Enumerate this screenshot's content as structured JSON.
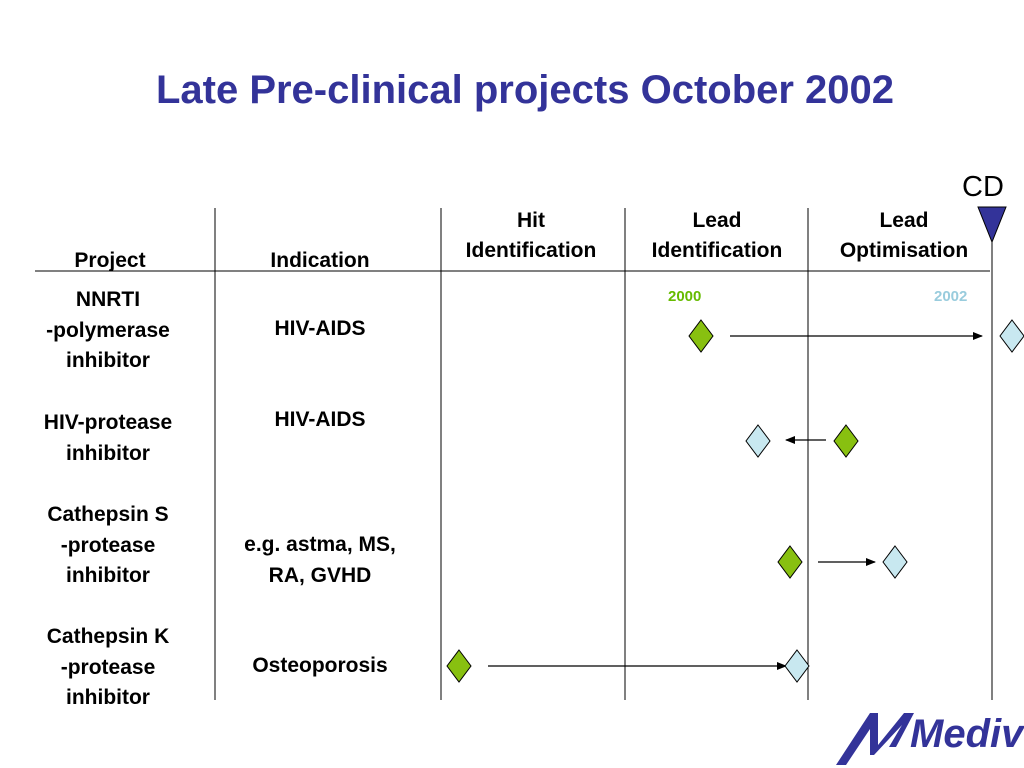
{
  "title": "Late Pre-clinical projects October 2002",
  "cd_marker": {
    "label": "CD",
    "color": "#333399"
  },
  "headers": {
    "project": "Project",
    "indication": "Indication",
    "hit_identification": [
      "Hit",
      "Identification"
    ],
    "lead_identification": [
      "Lead",
      "Identification"
    ],
    "lead_optimisation": [
      "Lead",
      "Optimisation"
    ]
  },
  "years": [
    {
      "label": "2000",
      "color": "#66bb00"
    },
    {
      "label": "2002",
      "color": "#99ccdd"
    }
  ],
  "legend_colors": {
    "start_diamond": "#88c010",
    "end_diamond": "#c8e8f0"
  },
  "projects": [
    {
      "name": [
        "NNRTI",
        "-polymerase",
        "inhibitor"
      ],
      "indication": [
        "HIV-AIDS"
      ]
    },
    {
      "name": [
        "HIV-protease",
        "inhibitor"
      ],
      "indication": [
        "HIV-AIDS"
      ]
    },
    {
      "name": [
        "Cathepsin S",
        "-protease",
        "inhibitor"
      ],
      "indication": [
        "e.g. astma, MS,",
        "RA, GVHD"
      ]
    },
    {
      "name": [
        "Cathepsin K",
        "-protease",
        "inhibitor"
      ],
      "indication": [
        "Osteoporosis"
      ]
    }
  ],
  "logo": {
    "text": "Medivir",
    "color": "#333399"
  }
}
